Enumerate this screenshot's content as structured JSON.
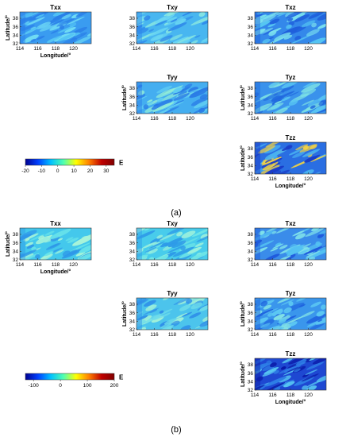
{
  "figure": {
    "panel_a_caption": "(a)",
    "panel_b_caption": "(b)"
  },
  "chart_data": [
    {
      "type": "heatmap",
      "panel": "(a)",
      "x_label": "Longitude/°",
      "y_label": "Latitude/°",
      "x_ticks": [
        114,
        116,
        118,
        120
      ],
      "y_ticks": [
        32,
        34,
        36,
        38
      ],
      "xlim": [
        114,
        122
      ],
      "ylim": [
        32,
        39.5
      ],
      "colorbar": {
        "label": "E",
        "ticks": [
          -20,
          -10,
          0,
          10,
          20,
          30
        ],
        "range": [
          -20,
          35
        ],
        "colors": [
          "#000090",
          "#0040ff",
          "#00c0ff",
          "#50ffb0",
          "#ffff00",
          "#ff8000",
          "#c00000",
          "#800000"
        ]
      },
      "subplots": [
        {
          "title": "Txx",
          "show_xlabel": true,
          "show_ylabel": true,
          "base": "#3a9cf0",
          "patches": [
            "#2a7fe8",
            "#52c3f4",
            "#70dcf4"
          ]
        },
        {
          "title": "Txy",
          "show_xlabel": false,
          "show_ylabel": false,
          "base": "#48b6f0",
          "patches": [
            "#2e88ea",
            "#6ad6f2",
            "#8ae8e0"
          ]
        },
        {
          "title": "Txz",
          "show_xlabel": false,
          "show_ylabel": false,
          "base": "#3488ea",
          "patches": [
            "#1f5fdc",
            "#56c6f2",
            "#7ae0ee"
          ]
        },
        {
          "title": "Tyy",
          "show_xlabel": false,
          "show_ylabel": true,
          "base": "#44aef0",
          "patches": [
            "#2a7ce6",
            "#62d0f2",
            "#90ecd8"
          ]
        },
        {
          "title": "Tyz",
          "show_xlabel": false,
          "show_ylabel": true,
          "base": "#3a92ec",
          "patches": [
            "#2068de",
            "#58c4f2",
            "#80e4e4"
          ]
        },
        {
          "title": "Tzz",
          "show_xlabel": true,
          "show_ylabel": true,
          "base": "#2a6ee2",
          "patches": [
            "#1a3cc8",
            "#48b0f0",
            "#f4d240"
          ]
        }
      ]
    },
    {
      "type": "heatmap",
      "panel": "(b)",
      "x_label": "Longitude/°",
      "y_label": "Latitude/°",
      "x_ticks": [
        114,
        116,
        118,
        120
      ],
      "y_ticks": [
        32,
        34,
        36,
        38
      ],
      "xlim": [
        114,
        122
      ],
      "ylim": [
        32,
        39.5
      ],
      "colorbar": {
        "label": "E",
        "ticks": [
          -100,
          0,
          100,
          200
        ],
        "range": [
          -130,
          200
        ],
        "colors": [
          "#000090",
          "#0040ff",
          "#00c0ff",
          "#50ffb0",
          "#ffff00",
          "#ff8000",
          "#c00000",
          "#800000"
        ]
      },
      "subplots": [
        {
          "title": "Txx",
          "show_xlabel": true,
          "show_ylabel": true,
          "base": "#44c8ec",
          "patches": [
            "#2e96e8",
            "#66e2ea",
            "#a8f4d8"
          ]
        },
        {
          "title": "Txy",
          "show_xlabel": false,
          "show_ylabel": false,
          "base": "#48cceb",
          "patches": [
            "#2e9ae8",
            "#70e6e6",
            "#9cf0dc"
          ]
        },
        {
          "title": "Txz",
          "show_xlabel": false,
          "show_ylabel": false,
          "base": "#3a8cea",
          "patches": [
            "#1e58dc",
            "#54c2f2",
            "#80e2ea"
          ]
        },
        {
          "title": "Tyy",
          "show_xlabel": false,
          "show_ylabel": true,
          "base": "#4cc4ec",
          "patches": [
            "#2e8ee8",
            "#6edcea",
            "#a0f0d8"
          ]
        },
        {
          "title": "Tyz",
          "show_xlabel": false,
          "show_ylabel": true,
          "base": "#3a96ec",
          "patches": [
            "#1e62de",
            "#5cc8f2",
            "#84e4e6"
          ]
        },
        {
          "title": "Tzz",
          "show_xlabel": true,
          "show_ylabel": true,
          "base": "#1e48d2",
          "patches": [
            "#0a1aa8",
            "#2e7ee6",
            "#58c8f2"
          ]
        }
      ]
    }
  ]
}
